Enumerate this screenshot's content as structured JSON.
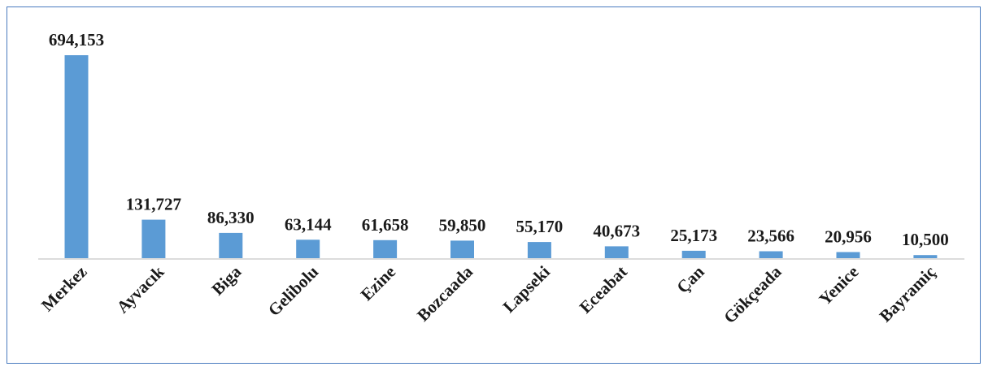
{
  "chart_data": {
    "type": "bar",
    "title": "",
    "xlabel": "",
    "ylabel": "",
    "categories": [
      "Merkez",
      "Ayvacık",
      "Biga",
      "Gelibolu",
      "Ezine",
      "Bozcaada",
      "Lapseki",
      "Eceabat",
      "Çan",
      "Gökçeada",
      "Yenice",
      "Bayramiç"
    ],
    "values": [
      694153,
      131727,
      86330,
      63144,
      61658,
      59850,
      55170,
      40673,
      25173,
      23566,
      20956,
      10500
    ],
    "value_labels": [
      "694,153",
      "131,727",
      "86,330",
      "63,144",
      "61,658",
      "59,850",
      "55,170",
      "40,673",
      "25,173",
      "23,566",
      "20,956",
      "10,500"
    ],
    "ylim": [
      0,
      694153
    ],
    "grid": false,
    "legend": "none",
    "bar_color": "#5b9bd5",
    "border_color": "#4a7bbf"
  }
}
